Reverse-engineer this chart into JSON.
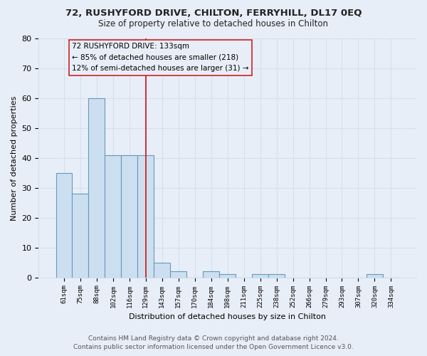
{
  "title": "72, RUSHYFORD DRIVE, CHILTON, FERRYHILL, DL17 0EQ",
  "subtitle": "Size of property relative to detached houses in Chilton",
  "xlabel": "Distribution of detached houses by size in Chilton",
  "ylabel": "Number of detached properties",
  "bar_labels": [
    "61sqm",
    "75sqm",
    "88sqm",
    "102sqm",
    "116sqm",
    "129sqm",
    "143sqm",
    "157sqm",
    "170sqm",
    "184sqm",
    "198sqm",
    "211sqm",
    "225sqm",
    "238sqm",
    "252sqm",
    "266sqm",
    "279sqm",
    "293sqm",
    "307sqm",
    "320sqm",
    "334sqm"
  ],
  "bar_values": [
    35,
    28,
    60,
    41,
    41,
    41,
    5,
    2,
    0,
    2,
    1,
    0,
    1,
    1,
    0,
    0,
    0,
    0,
    0,
    1,
    0
  ],
  "bar_color": "#ccdff0",
  "bar_edge_color": "#6699bb",
  "red_line_index": 5,
  "ylim": [
    0,
    80
  ],
  "yticks": [
    0,
    10,
    20,
    30,
    40,
    50,
    60,
    70,
    80
  ],
  "annotation_text_line1": "72 RUSHYFORD DRIVE: 133sqm",
  "annotation_text_line2": "← 85% of detached houses are smaller (218)",
  "annotation_text_line3": "12% of semi-detached houses are larger (31) →",
  "footer_line1": "Contains HM Land Registry data © Crown copyright and database right 2024.",
  "footer_line2": "Contains public sector information licensed under the Open Government Licence v3.0.",
  "grid_color": "#d4dff0",
  "background_color": "#e8eef8"
}
